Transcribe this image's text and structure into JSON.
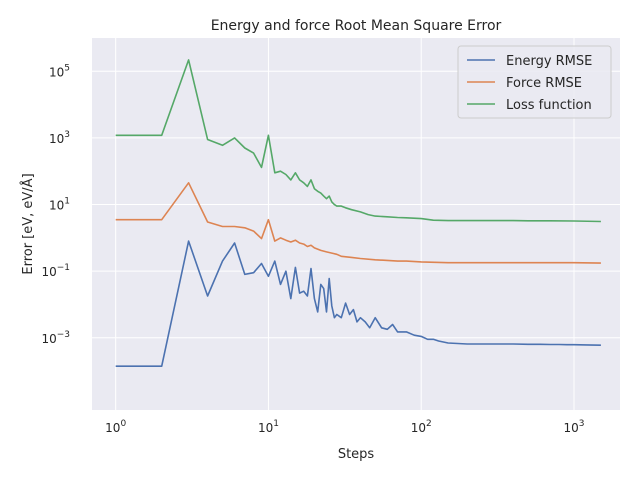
{
  "chart_data": {
    "type": "line",
    "title": "Energy and force Root Mean Square Error",
    "xlabel": "Steps",
    "ylabel": "Error [eV, eV/Å]",
    "xscale": "log",
    "yscale": "log",
    "xlim": [
      0.7,
      2000
    ],
    "ylim": [
      6.8e-06,
      1000000
    ],
    "grid": true,
    "legend_position": "top-right",
    "x_ticks": [
      {
        "base": "10",
        "exp": "0",
        "value": 1
      },
      {
        "base": "10",
        "exp": "1",
        "value": 10
      },
      {
        "base": "10",
        "exp": "2",
        "value": 100
      },
      {
        "base": "10",
        "exp": "3",
        "value": 1000
      }
    ],
    "y_ticks": [
      {
        "base": "10",
        "exp": "−3",
        "value": 0.001
      },
      {
        "base": "10",
        "exp": "−1",
        "value": 0.1
      },
      {
        "base": "10",
        "exp": "1",
        "value": 10
      },
      {
        "base": "10",
        "exp": "3",
        "value": 1000
      },
      {
        "base": "10",
        "exp": "5",
        "value": 100000
      }
    ],
    "series": [
      {
        "name": "Energy RMSE",
        "color": "#4c72b0",
        "x": [
          1,
          2,
          3,
          4,
          5,
          6,
          7,
          8,
          9,
          10,
          11,
          12,
          13,
          14,
          15,
          16,
          17,
          18,
          19,
          20,
          21,
          22,
          23,
          24,
          25,
          26,
          27,
          28,
          30,
          32,
          34,
          36,
          38,
          40,
          43,
          46,
          50,
          55,
          60,
          65,
          70,
          80,
          90,
          100,
          110,
          120,
          130,
          150,
          200,
          300,
          400,
          500,
          600,
          700,
          800,
          900,
          1000,
          1200,
          1500
        ],
        "y": [
          0.00014,
          0.00014,
          0.8,
          0.018,
          0.2,
          0.7,
          0.08,
          0.09,
          0.17,
          0.07,
          0.2,
          0.04,
          0.1,
          0.015,
          0.13,
          0.022,
          0.025,
          0.018,
          0.12,
          0.015,
          0.006,
          0.04,
          0.03,
          0.006,
          0.06,
          0.009,
          0.004,
          0.005,
          0.004,
          0.011,
          0.005,
          0.007,
          0.003,
          0.004,
          0.003,
          0.002,
          0.004,
          0.002,
          0.0018,
          0.0025,
          0.0015,
          0.0015,
          0.0012,
          0.0011,
          0.0009,
          0.0009,
          0.0008,
          0.0007,
          0.00065,
          0.00065,
          0.00065,
          0.00064,
          0.00064,
          0.00063,
          0.00063,
          0.00062,
          0.00062,
          0.00061,
          0.0006
        ]
      },
      {
        "name": "Force RMSE",
        "color": "#dd8452",
        "x": [
          1,
          2,
          3,
          4,
          5,
          6,
          7,
          8,
          9,
          10,
          11,
          12,
          13,
          14,
          15,
          16,
          17,
          18,
          19,
          20,
          22,
          24,
          26,
          28,
          30,
          35,
          40,
          50,
          60,
          70,
          80,
          100,
          150,
          200,
          300,
          500,
          700,
          1000,
          1500
        ],
        "y": [
          3.5,
          3.5,
          45,
          3.0,
          2.2,
          2.2,
          2.0,
          1.6,
          0.95,
          3.5,
          0.8,
          1.0,
          0.85,
          0.75,
          0.85,
          0.7,
          0.65,
          0.55,
          0.6,
          0.5,
          0.42,
          0.38,
          0.35,
          0.32,
          0.28,
          0.26,
          0.24,
          0.22,
          0.21,
          0.2,
          0.2,
          0.19,
          0.18,
          0.18,
          0.18,
          0.18,
          0.18,
          0.18,
          0.175
        ]
      },
      {
        "name": "Loss function",
        "color": "#55a868",
        "x": [
          1,
          2,
          3,
          4,
          5,
          6,
          7,
          8,
          9,
          10,
          11,
          12,
          13,
          14,
          15,
          16,
          17,
          18,
          19,
          20,
          21,
          22,
          23,
          24,
          25,
          26,
          27,
          28,
          30,
          32,
          35,
          40,
          45,
          50,
          60,
          70,
          80,
          100,
          120,
          150,
          200,
          300,
          400,
          500,
          700,
          1000,
          1500
        ],
        "y": [
          1200,
          1200,
          220000,
          900,
          600,
          1000,
          500,
          350,
          130,
          1200,
          90,
          100,
          80,
          55,
          90,
          55,
          45,
          35,
          55,
          30,
          25,
          22,
          18,
          15,
          18,
          12,
          10,
          9,
          9,
          8,
          7,
          6,
          5,
          4.5,
          4.3,
          4.1,
          4,
          3.8,
          3.4,
          3.3,
          3.3,
          3.3,
          3.3,
          3.25,
          3.25,
          3.2,
          3.1
        ]
      }
    ]
  }
}
